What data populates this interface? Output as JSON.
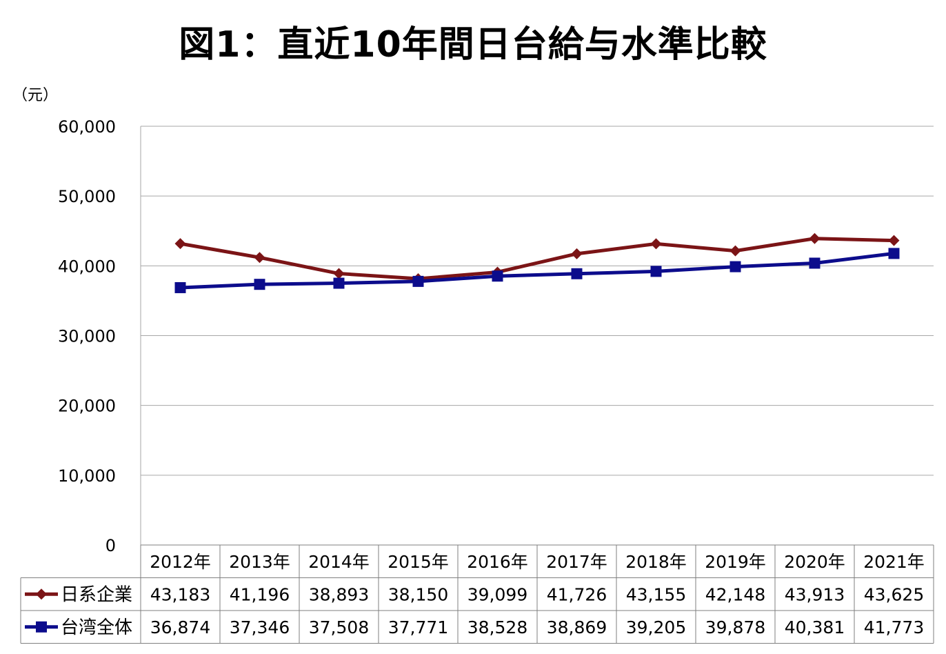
{
  "title": "図1：直近10年間日台給与水準比較",
  "unit": "（元）",
  "colors": {
    "japan": "#7b1416",
    "taiwan": "#0c0c8c",
    "grid": "#a6a6a6"
  },
  "chart_data": {
    "type": "line",
    "title": "図1：直近10年間日台給与水準比較",
    "ylabel": "（元）",
    "ylim": [
      0,
      60000
    ],
    "yticks": [
      "0",
      "10,000",
      "20,000",
      "30,000",
      "40,000",
      "50,000",
      "60,000"
    ],
    "grid": true,
    "categories": [
      "2012年",
      "2013年",
      "2014年",
      "2015年",
      "2016年",
      "2017年",
      "2018年",
      "2019年",
      "2020年",
      "2021年"
    ],
    "series": [
      {
        "name": "日系企業",
        "marker": "diamond",
        "values": [
          43183,
          41196,
          38893,
          38150,
          39099,
          41726,
          43155,
          42148,
          43913,
          43625
        ],
        "labels": [
          "43,183",
          "41,196",
          "38,893",
          "38,150",
          "39,099",
          "41,726",
          "43,155",
          "42,148",
          "43,913",
          "43,625"
        ]
      },
      {
        "name": "台湾全体",
        "marker": "square",
        "values": [
          36874,
          37346,
          37508,
          37771,
          38528,
          38869,
          39205,
          39878,
          40381,
          41773
        ],
        "labels": [
          "36,874",
          "37,346",
          "37,508",
          "37,771",
          "38,528",
          "38,869",
          "39,205",
          "39,878",
          "40,381",
          "41,773"
        ]
      }
    ]
  }
}
